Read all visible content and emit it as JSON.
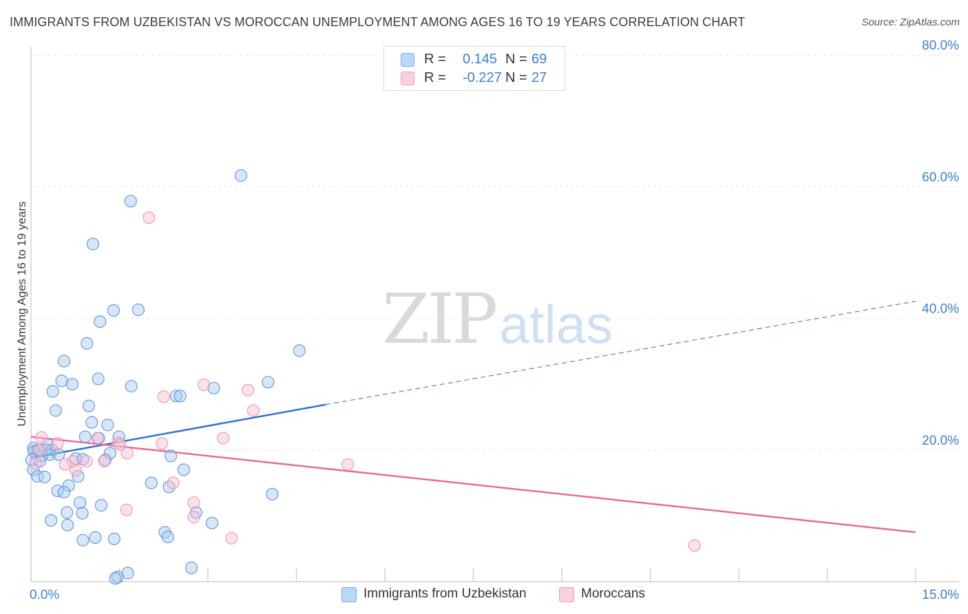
{
  "title": "IMMIGRANTS FROM UZBEKISTAN VS MOROCCAN UNEMPLOYMENT AMONG AGES 16 TO 19 YEARS CORRELATION CHART",
  "source": "Source: ZipAtlas.com",
  "watermark": {
    "zip": "ZIP",
    "atlas": "atlas"
  },
  "stats": [
    {
      "r_label": "R =",
      "r_value": "0.145",
      "n_label": "N =",
      "n_value": "69",
      "color": "#a9c9f0"
    },
    {
      "r_label": "R =",
      "r_value": "-0.227",
      "n_label": "N =",
      "n_value": "27",
      "color": "#f6bfd1"
    }
  ],
  "legend": [
    {
      "label": "Immigrants from Uzbekistan",
      "color": "#a9c9f0"
    },
    {
      "label": "Moroccans",
      "color": "#f6bfd1"
    }
  ],
  "chart_data": {
    "type": "scatter",
    "title": "IMMIGRANTS FROM UZBEKISTAN VS MOROCCAN UNEMPLOYMENT AMONG AGES 16 TO 19 YEARS CORRELATION CHART",
    "xlabel": "",
    "ylabel": "Unemployment Among Ages 16 to 19 years",
    "xlim": [
      0,
      15
    ],
    "ylim": [
      0,
      80
    ],
    "x_tick_labels": [
      "0.0%",
      "15.0%"
    ],
    "y_ticks": [
      20,
      40,
      60,
      80
    ],
    "y_tick_labels": [
      "20.0%",
      "40.0%",
      "60.0%",
      "80.0%"
    ],
    "grid": true,
    "series": [
      {
        "name": "Immigrants from Uzbekistan",
        "color": "#6fa2e3",
        "points": [
          [
            3.56,
            61.7
          ],
          [
            1.69,
            57.8
          ],
          [
            1.05,
            51.3
          ],
          [
            1.4,
            41.2
          ],
          [
            1.82,
            41.3
          ],
          [
            1.17,
            39.5
          ],
          [
            0.95,
            36.2
          ],
          [
            4.55,
            35.1
          ],
          [
            0.56,
            33.5
          ],
          [
            0.52,
            30.5
          ],
          [
            1.14,
            30.8
          ],
          [
            0.7,
            30.0
          ],
          [
            1.7,
            29.7
          ],
          [
            4.02,
            30.3
          ],
          [
            3.1,
            29.4
          ],
          [
            0.37,
            28.9
          ],
          [
            2.46,
            28.2
          ],
          [
            2.53,
            28.2
          ],
          [
            0.98,
            26.7
          ],
          [
            0.42,
            26.0
          ],
          [
            1.03,
            24.2
          ],
          [
            1.3,
            23.8
          ],
          [
            1.49,
            22.0
          ],
          [
            0.92,
            22.0
          ],
          [
            1.15,
            21.8
          ],
          [
            0.04,
            20.3
          ],
          [
            0.28,
            20.9
          ],
          [
            0.36,
            20.0
          ],
          [
            0.05,
            19.8
          ],
          [
            0.32,
            19.3
          ],
          [
            0.18,
            19.1
          ],
          [
            0.47,
            19.3
          ],
          [
            1.34,
            19.5
          ],
          [
            2.37,
            19.1
          ],
          [
            0.76,
            18.7
          ],
          [
            0.88,
            18.6
          ],
          [
            1.26,
            18.5
          ],
          [
            0.01,
            18.5
          ],
          [
            0.15,
            18.3
          ],
          [
            0.04,
            17.0
          ],
          [
            2.59,
            17.0
          ],
          [
            0.11,
            16.0
          ],
          [
            0.23,
            15.9
          ],
          [
            0.8,
            16.0
          ],
          [
            2.04,
            15.0
          ],
          [
            2.34,
            14.4
          ],
          [
            0.64,
            14.6
          ],
          [
            0.45,
            13.8
          ],
          [
            4.09,
            13.3
          ],
          [
            0.56,
            13.6
          ],
          [
            0.83,
            12.0
          ],
          [
            1.19,
            11.6
          ],
          [
            0.61,
            10.5
          ],
          [
            0.87,
            10.4
          ],
          [
            2.8,
            10.5
          ],
          [
            0.34,
            9.3
          ],
          [
            0.62,
            8.6
          ],
          [
            3.07,
            8.9
          ],
          [
            2.27,
            7.5
          ],
          [
            2.32,
            6.8
          ],
          [
            1.09,
            6.7
          ],
          [
            0.88,
            6.3
          ],
          [
            1.41,
            6.5
          ],
          [
            2.72,
            2.1
          ],
          [
            1.64,
            1.3
          ],
          [
            1.47,
            0.7
          ],
          [
            1.43,
            0.5
          ],
          [
            0.25,
            20.0
          ],
          [
            0.12,
            20.0
          ]
        ],
        "trend": {
          "x": [
            0,
            5.0
          ],
          "y": [
            18.8,
            26.9
          ],
          "extended_x": [
            5.0,
            15.0
          ],
          "extended_y": [
            26.9,
            42.6
          ]
        }
      },
      {
        "name": "Moroccans",
        "color": "#f08db0",
        "points": [
          [
            2.0,
            55.3
          ],
          [
            0.18,
            21.9
          ],
          [
            0.45,
            21.0
          ],
          [
            3.68,
            29.1
          ],
          [
            2.93,
            29.9
          ],
          [
            2.25,
            28.1
          ],
          [
            3.77,
            26.0
          ],
          [
            3.26,
            21.8
          ],
          [
            1.13,
            21.8
          ],
          [
            1.48,
            21.1
          ],
          [
            1.51,
            20.8
          ],
          [
            1.63,
            19.5
          ],
          [
            2.22,
            21.0
          ],
          [
            0.16,
            20.0
          ],
          [
            0.71,
            18.3
          ],
          [
            0.94,
            18.3
          ],
          [
            1.24,
            18.3
          ],
          [
            0.58,
            17.8
          ],
          [
            0.76,
            16.9
          ],
          [
            5.37,
            17.8
          ],
          [
            2.41,
            15.0
          ],
          [
            2.76,
            12.0
          ],
          [
            1.62,
            10.9
          ],
          [
            2.76,
            9.8
          ],
          [
            3.4,
            6.6
          ],
          [
            11.25,
            5.5
          ],
          [
            0.08,
            18.0
          ]
        ],
        "trend": {
          "x": [
            0,
            15.0
          ],
          "y": [
            22.0,
            7.5
          ]
        }
      }
    ]
  }
}
